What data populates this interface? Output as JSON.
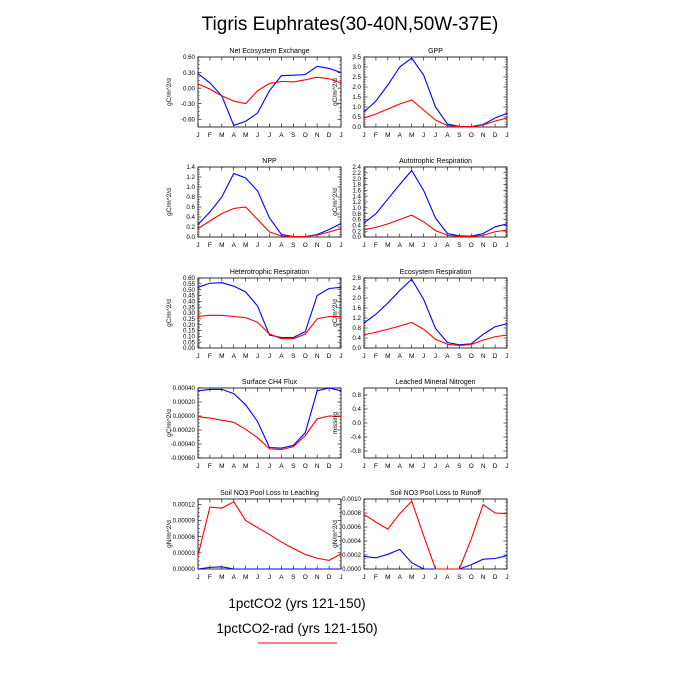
{
  "page_title": "Tigris Euphrates(30-40N,50W-37E)",
  "legend": {
    "entries": [
      {
        "label": "1pctCO2 (yrs 121-150)",
        "color": "#0000ff",
        "line_visible": false
      },
      {
        "label": "1pctCO2-rad (yrs 121-150)",
        "color": "#ff0000",
        "line_visible": true
      }
    ]
  },
  "chart_data": [
    {
      "type": "line",
      "title": "Net Ecosystem Exchange",
      "ylabel": "gC/m^2/d",
      "categories": [
        "J",
        "F",
        "M",
        "A",
        "M",
        "J",
        "J",
        "A",
        "S",
        "O",
        "N",
        "D",
        "J"
      ],
      "ylim": [
        -0.75,
        0.6
      ],
      "yticks": [
        "-0.60",
        "-0.30",
        "0.00",
        "0.30",
        "0.60"
      ],
      "ytick_values": [
        -0.6,
        -0.3,
        0.0,
        0.3,
        0.6
      ],
      "series": [
        {
          "color": "#0000ff",
          "values": [
            0.28,
            0.1,
            -0.15,
            -0.72,
            -0.64,
            -0.48,
            -0.05,
            0.24,
            0.25,
            0.26,
            0.42,
            0.38,
            0.3
          ]
        },
        {
          "color": "#ff0000",
          "values": [
            0.08,
            -0.02,
            -0.15,
            -0.25,
            -0.3,
            -0.05,
            0.09,
            0.13,
            0.12,
            0.16,
            0.21,
            0.18,
            0.1
          ]
        }
      ]
    },
    {
      "type": "line",
      "title": "GPP",
      "ylabel": "gC/m^2/d",
      "categories": [
        "J",
        "F",
        "M",
        "A",
        "M",
        "J",
        "J",
        "A",
        "S",
        "O",
        "N",
        "D",
        "J"
      ],
      "ylim": [
        0,
        3.5
      ],
      "yticks": [
        "0.0",
        "0.5",
        "1.0",
        "1.5",
        "2.0",
        "2.5",
        "3.0",
        "3.5"
      ],
      "ytick_values": [
        0,
        0.5,
        1.0,
        1.5,
        2.0,
        2.5,
        3.0,
        3.5
      ],
      "series": [
        {
          "color": "#0000ff",
          "values": [
            0.75,
            1.3,
            2.1,
            3.0,
            3.45,
            2.6,
            1.0,
            0.15,
            0.03,
            0.02,
            0.12,
            0.45,
            0.68
          ]
        },
        {
          "color": "#ff0000",
          "values": [
            0.45,
            0.65,
            0.9,
            1.15,
            1.35,
            0.85,
            0.35,
            0.07,
            0.02,
            0.01,
            0.1,
            0.3,
            0.45
          ]
        }
      ]
    },
    {
      "type": "line",
      "title": "NPP",
      "ylabel": "gC/m^2/d",
      "categories": [
        "J",
        "F",
        "M",
        "A",
        "M",
        "J",
        "J",
        "A",
        "S",
        "O",
        "N",
        "D",
        "J"
      ],
      "ylim": [
        0,
        1.4
      ],
      "yticks": [
        "0.0",
        "0.2",
        "0.4",
        "0.6",
        "0.8",
        "1.0",
        "1.2",
        "1.4"
      ],
      "ytick_values": [
        0,
        0.2,
        0.4,
        0.6,
        0.8,
        1.0,
        1.2,
        1.4
      ],
      "series": [
        {
          "color": "#0000ff",
          "values": [
            0.25,
            0.5,
            0.8,
            1.27,
            1.18,
            0.92,
            0.38,
            0.05,
            0.01,
            0.01,
            0.05,
            0.15,
            0.27
          ]
        },
        {
          "color": "#ff0000",
          "values": [
            0.17,
            0.32,
            0.47,
            0.57,
            0.6,
            0.35,
            0.1,
            0.02,
            0.01,
            0.01,
            0.04,
            0.1,
            0.17
          ]
        }
      ]
    },
    {
      "type": "line",
      "title": "Autotrophic Respiration",
      "ylabel": "gC/m^2/d",
      "categories": [
        "J",
        "F",
        "M",
        "A",
        "M",
        "J",
        "J",
        "A",
        "S",
        "O",
        "N",
        "D",
        "J"
      ],
      "ylim": [
        0,
        2.4
      ],
      "yticks": [
        "0.0",
        "0.2",
        "0.4",
        "0.6",
        "0.8",
        "1.0",
        "1.2",
        "1.4",
        "1.6",
        "1.8",
        "2.0",
        "2.2",
        "2.4"
      ],
      "ytick_values": [
        0,
        0.2,
        0.4,
        0.6,
        0.8,
        1.0,
        1.2,
        1.4,
        1.6,
        1.8,
        2.0,
        2.2,
        2.4
      ],
      "series": [
        {
          "color": "#0000ff",
          "values": [
            0.48,
            0.8,
            1.3,
            1.8,
            2.28,
            1.6,
            0.65,
            0.12,
            0.04,
            0.03,
            0.12,
            0.35,
            0.45
          ]
        },
        {
          "color": "#ff0000",
          "values": [
            0.25,
            0.33,
            0.45,
            0.6,
            0.75,
            0.52,
            0.22,
            0.06,
            0.02,
            0.02,
            0.06,
            0.18,
            0.24
          ]
        }
      ]
    },
    {
      "type": "line",
      "title": "Heterotrophic Respiration",
      "ylabel": "gC/m^2/d",
      "categories": [
        "J",
        "F",
        "M",
        "A",
        "M",
        "J",
        "J",
        "A",
        "S",
        "O",
        "N",
        "D",
        "J"
      ],
      "ylim": [
        0,
        0.6
      ],
      "yticks": [
        "0.00",
        "0.05",
        "0.10",
        "0.15",
        "0.20",
        "0.25",
        "0.30",
        "0.35",
        "0.40",
        "0.45",
        "0.50",
        "0.55",
        "0.60"
      ],
      "ytick_values": [
        0,
        0.05,
        0.1,
        0.15,
        0.2,
        0.25,
        0.3,
        0.35,
        0.4,
        0.45,
        0.5,
        0.55,
        0.6
      ],
      "series": [
        {
          "color": "#0000ff",
          "values": [
            0.52,
            0.555,
            0.56,
            0.53,
            0.48,
            0.36,
            0.11,
            0.09,
            0.09,
            0.14,
            0.45,
            0.51,
            0.52
          ]
        },
        {
          "color": "#ff0000",
          "values": [
            0.27,
            0.28,
            0.28,
            0.27,
            0.26,
            0.22,
            0.12,
            0.08,
            0.08,
            0.12,
            0.25,
            0.27,
            0.27
          ]
        }
      ]
    },
    {
      "type": "line",
      "title": "Ecosystem Respiration",
      "ylabel": "gC/m^2/d",
      "categories": [
        "J",
        "F",
        "M",
        "A",
        "M",
        "J",
        "J",
        "A",
        "S",
        "O",
        "N",
        "D",
        "J"
      ],
      "ylim": [
        0,
        2.8
      ],
      "yticks": [
        "0.0",
        "0.4",
        "0.8",
        "1.2",
        "1.6",
        "2.0",
        "2.4",
        "2.8"
      ],
      "ytick_values": [
        0,
        0.4,
        0.8,
        1.2,
        1.6,
        2.0,
        2.4,
        2.8
      ],
      "series": [
        {
          "color": "#0000ff",
          "values": [
            1.0,
            1.35,
            1.8,
            2.3,
            2.75,
            1.95,
            0.78,
            0.22,
            0.13,
            0.17,
            0.55,
            0.85,
            0.97
          ]
        },
        {
          "color": "#ff0000",
          "values": [
            0.53,
            0.63,
            0.75,
            0.88,
            1.02,
            0.75,
            0.35,
            0.15,
            0.1,
            0.14,
            0.32,
            0.45,
            0.52
          ]
        }
      ]
    },
    {
      "type": "line",
      "title": "Surface CH4 Flux",
      "ylabel": "gC/m^2/d",
      "categories": [
        "J",
        "F",
        "M",
        "A",
        "M",
        "J",
        "J",
        "A",
        "S",
        "O",
        "N",
        "D",
        "J"
      ],
      "ylim": [
        -0.0006,
        0.0004
      ],
      "yticks": [
        "-0.00060",
        "-0.00040",
        "-0.00020",
        "0.00000",
        "0.00020",
        "0.00040"
      ],
      "ytick_values": [
        -0.0006,
        -0.0004,
        -0.0002,
        0.0,
        0.0002,
        0.0004
      ],
      "series": [
        {
          "color": "#0000ff",
          "values": [
            0.00036,
            0.00038,
            0.00038,
            0.00032,
            0.00016,
            -8e-05,
            -0.00045,
            -0.00046,
            -0.00042,
            -0.00024,
            0.00036,
            0.0004,
            0.00036
          ]
        },
        {
          "color": "#ff0000",
          "values": [
            -1e-05,
            -3e-05,
            -6e-05,
            -9e-05,
            -0.00019,
            -0.00031,
            -0.00047,
            -0.00048,
            -0.00044,
            -0.00028,
            -4e-05,
            0.0,
            -1e-05
          ]
        }
      ]
    },
    {
      "type": "line",
      "title": "Leached Mineral Nitrogen",
      "ylabel": "missing",
      "categories": [
        "J",
        "F",
        "M",
        "A",
        "M",
        "J",
        "J",
        "A",
        "S",
        "O",
        "N",
        "D",
        "J"
      ],
      "ylim": [
        -1.0,
        1.0
      ],
      "yticks": [
        "-0.8",
        "-0.4",
        "0.0",
        "0.4",
        "0.8"
      ],
      "ytick_values": [
        -0.8,
        -0.4,
        0.0,
        0.4,
        0.8
      ],
      "series": []
    },
    {
      "type": "line",
      "title": "Soil NO3 Pool Loss to Leaching",
      "ylabel": "gN/m^2/d",
      "categories": [
        "J",
        "F",
        "M",
        "A",
        "M",
        "J",
        "J",
        "A",
        "S",
        "O",
        "N",
        "D",
        "J"
      ],
      "ylim": [
        0,
        0.00013
      ],
      "yticks": [
        "0.00000",
        "0.00003",
        "0.00006",
        "0.00009",
        "0.00012"
      ],
      "ytick_values": [
        0,
        3e-05,
        6e-05,
        9e-05,
        0.00012
      ],
      "series": [
        {
          "color": "#0000ff",
          "values": [
            0.0,
            3e-06,
            4e-06,
            0.0,
            0.0,
            0.0,
            0.0,
            0.0,
            0.0,
            0.0,
            0.0,
            0.0,
            0.0
          ]
        },
        {
          "color": "#ff0000",
          "values": [
            2.5e-05,
            0.000115,
            0.000113,
            0.000125,
            9e-05,
            7.7e-05,
            6.4e-05,
            5e-05,
            3.8e-05,
            2.7e-05,
            2e-05,
            1.6e-05,
            2.8e-05
          ]
        }
      ]
    },
    {
      "type": "line",
      "title": "Soil NO3 Pool Loss to Runoff",
      "ylabel": "gN/m^2/d",
      "categories": [
        "J",
        "F",
        "M",
        "A",
        "M",
        "J",
        "J",
        "A",
        "S",
        "O",
        "N",
        "D",
        "J"
      ],
      "ylim": [
        0,
        0.001
      ],
      "yticks": [
        "0.0000",
        "0.0002",
        "0.0004",
        "0.0006",
        "0.0008",
        "0.0010"
      ],
      "ytick_values": [
        0,
        0.0002,
        0.0004,
        0.0006,
        0.0008,
        0.001
      ],
      "series": [
        {
          "color": "#0000ff",
          "values": [
            0.00018,
            0.00016,
            0.00021,
            0.00028,
            9e-05,
            0.0,
            0.0,
            0.0,
            0.0,
            6e-05,
            0.00014,
            0.00015,
            0.00019
          ]
        },
        {
          "color": "#ff0000",
          "values": [
            0.00078,
            0.00067,
            0.00057,
            0.00079,
            0.00097,
            0.00048,
            0.0,
            0.0,
            0.0,
            0.00043,
            0.00092,
            0.0008,
            0.00079
          ]
        }
      ]
    }
  ]
}
